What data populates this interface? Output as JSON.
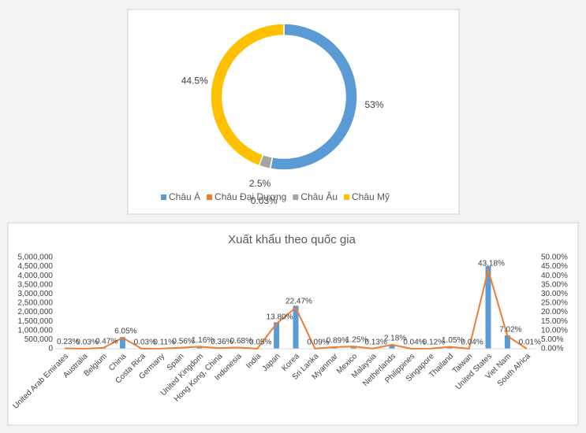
{
  "chart_data": [
    {
      "type": "donut",
      "categories": [
        "Châu Á",
        "Châu Đại Dương",
        "Châu Âu",
        "Châu Mỹ"
      ],
      "values": [
        53,
        0.03,
        2.5,
        44.5
      ],
      "value_labels": [
        "53%",
        "0.03%",
        "2.5%",
        "44.5%"
      ],
      "colors": [
        "#5b9bd5",
        "#ed7d31",
        "#a5a5a5",
        "#ffc000"
      ],
      "legend": "bottom"
    },
    {
      "type": "combo",
      "title": "Xuất khẩu theo quốc gia",
      "categories": [
        "United Arab Emirates",
        "Australia",
        "Belgium",
        "China",
        "Costa Rica",
        "Germany",
        "Spain",
        "United Kingdom",
        "Hong Kong, China",
        "Indonesia",
        "India",
        "Japan",
        "Korea",
        "Sri Lanka",
        "Myanmar",
        "Mexico",
        "Malaysia",
        "Netherlands",
        "Philippines",
        "Singapore",
        "Thailand",
        "Taiwan",
        "United States",
        "Viet Nam",
        "South Africa"
      ],
      "series": [
        {
          "type": "bar",
          "color": "#5b9bd5",
          "values": [
            24000,
            3000,
            49000,
            635000,
            3000,
            12000,
            59000,
            122000,
            38000,
            71000,
            5000,
            1449000,
            2359000,
            9000,
            93000,
            131000,
            14000,
            229000,
            4000,
            13000,
            110000,
            4000,
            4534000,
            737000,
            1000
          ]
        },
        {
          "type": "line",
          "axis": "y2",
          "color": "#ed7d31",
          "values": [
            0.23,
            0.03,
            0.47,
            6.05,
            0.03,
            0.11,
            0.56,
            1.16,
            0.36,
            0.68,
            0.05,
            13.8,
            22.47,
            0.09,
            0.89,
            1.25,
            0.13,
            2.18,
            0.04,
            0.12,
            1.05,
            0.04,
            43.18,
            7.02,
            0.01
          ],
          "value_labels": [
            "0.23%",
            "0.03%",
            "0.47%",
            "6.05%",
            "0.03%",
            "0.11%",
            "0.56%",
            "1.16%",
            "0.36%",
            "0.68%",
            "0.05%",
            "13.80%",
            "22.47%",
            "0.09%",
            "0.89%",
            "1.25%",
            "0.13%",
            "2.18%",
            "0.04%",
            "0.12%",
            "1.05%",
            "0.04%",
            "43.18%",
            "7.02%",
            "0.01%"
          ]
        }
      ],
      "ylim": [
        0,
        5000000
      ],
      "yticks": [
        0,
        {
          "value": 500000,
          "label": "500,000"
        },
        {
          "value": 1000000,
          "label": "1,000,000"
        },
        {
          "value": 1500000,
          "label": "1,500,000"
        },
        {
          "value": 2000000,
          "label": "2,000,000"
        },
        {
          "value": 2500000,
          "label": "2,500,000"
        },
        {
          "value": 3000000,
          "label": "3,000,000"
        },
        {
          "value": 3500000,
          "label": "3,500,000"
        },
        {
          "value": 4000000,
          "label": "4,000,000"
        },
        {
          "value": 4500000,
          "label": "4,500,000"
        },
        {
          "value": 5000000,
          "label": "5,000,000"
        }
      ],
      "y2lim": [
        0,
        50
      ],
      "y2ticks": [
        {
          "value": 0,
          "label": "0.00%"
        },
        {
          "value": 5,
          "label": "5.00%"
        },
        {
          "value": 10,
          "label": "10.00%"
        },
        {
          "value": 15,
          "label": "15.00%"
        },
        {
          "value": 20,
          "label": "20.00%"
        },
        {
          "value": 25,
          "label": "25.00%"
        },
        {
          "value": 30,
          "label": "30.00%"
        },
        {
          "value": 35,
          "label": "35.00%"
        },
        {
          "value": 40,
          "label": "40.00%"
        },
        {
          "value": 45,
          "label": "45.00%"
        },
        {
          "value": 50,
          "label": "50.00%"
        }
      ],
      "grid": false
    }
  ]
}
